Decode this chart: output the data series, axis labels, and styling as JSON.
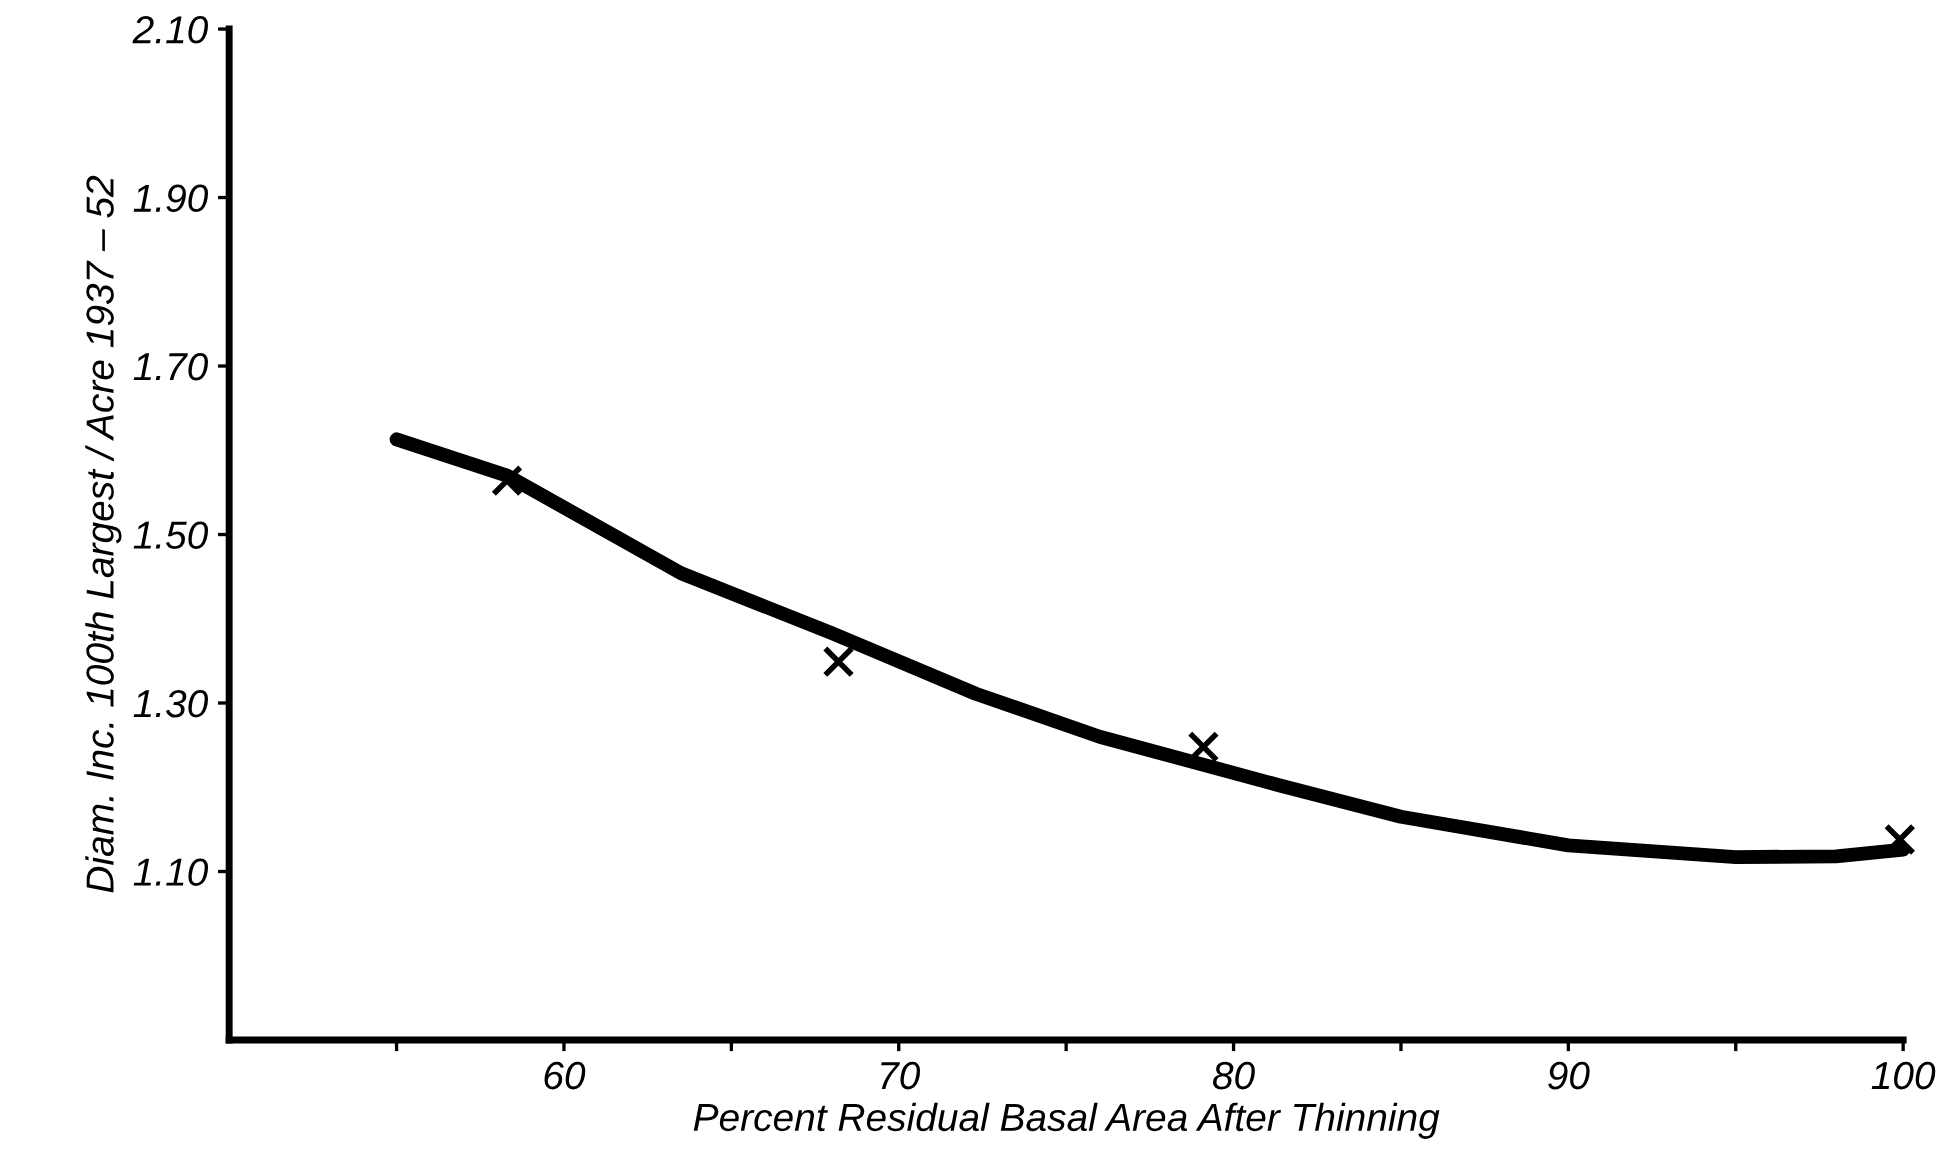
{
  "chart_data": {
    "type": "scatter",
    "xlabel": "Percent Residual Basal Area After Thinning",
    "ylabel": "Diam. Inc. 100th Largest / Acre 1937 – 52",
    "series": [
      {
        "color": "#000000",
        "marker": "cross",
        "x": [
          58.3,
          68.2,
          79.1,
          99.9
        ],
        "values": [
          1.564,
          1.349,
          1.248,
          1.138
        ]
      },
      {
        "type": "line",
        "color": "#000000",
        "marker": "none",
        "line_style": "solid",
        "x": [
          55,
          58.3,
          63.5,
          68,
          72.3,
          76,
          81.3,
          85,
          90,
          95,
          98,
          100
        ],
        "values": [
          1.613,
          1.57,
          1.454,
          1.383,
          1.311,
          1.26,
          1.203,
          1.165,
          1.131,
          1.117,
          1.118,
          1.126
        ]
      }
    ],
    "xlim": [
      50,
      100
    ],
    "ylim": [
      0.9,
      2.1
    ],
    "xticks": [
      {
        "value": 55,
        "label": null
      },
      60,
      {
        "value": 65,
        "label": null
      },
      70,
      {
        "value": 75,
        "label": null
      },
      80,
      {
        "value": 85,
        "label": null
      },
      90,
      {
        "value": 95,
        "label": null
      },
      100
    ],
    "yticks": [
      {
        "value": 1.1,
        "label": "1.10"
      },
      {
        "value": 1.3,
        "label": "1.30"
      },
      {
        "value": 1.5,
        "label": "1.50"
      },
      {
        "value": 1.7,
        "label": "1.70"
      },
      {
        "value": 1.9,
        "label": "1.90"
      },
      {
        "value": 2.1,
        "label": "2.10"
      }
    ],
    "grid": false,
    "legend": false
  }
}
